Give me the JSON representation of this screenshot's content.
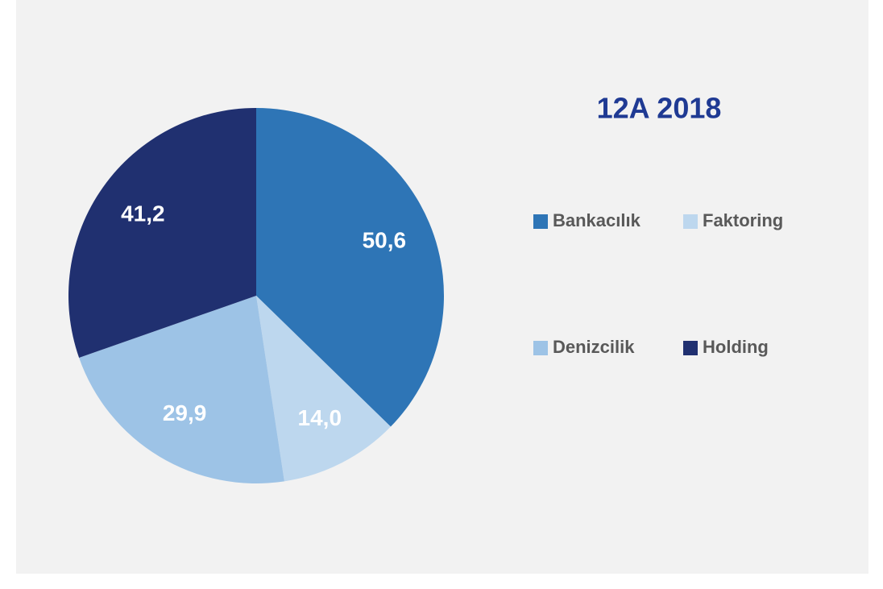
{
  "chart_data": {
    "type": "pie",
    "title": "12A 2018",
    "categories": [
      "Bankacılık",
      "Faktoring",
      "Denizcilik",
      "Holding"
    ],
    "values": [
      50.6,
      14.0,
      29.9,
      41.2
    ],
    "value_labels": [
      "50,6",
      "14,0",
      "29,9",
      "41,2"
    ],
    "colors": [
      "#2e75b6",
      "#bdd7ee",
      "#9dc3e6",
      "#203070"
    ],
    "legend": "right"
  }
}
